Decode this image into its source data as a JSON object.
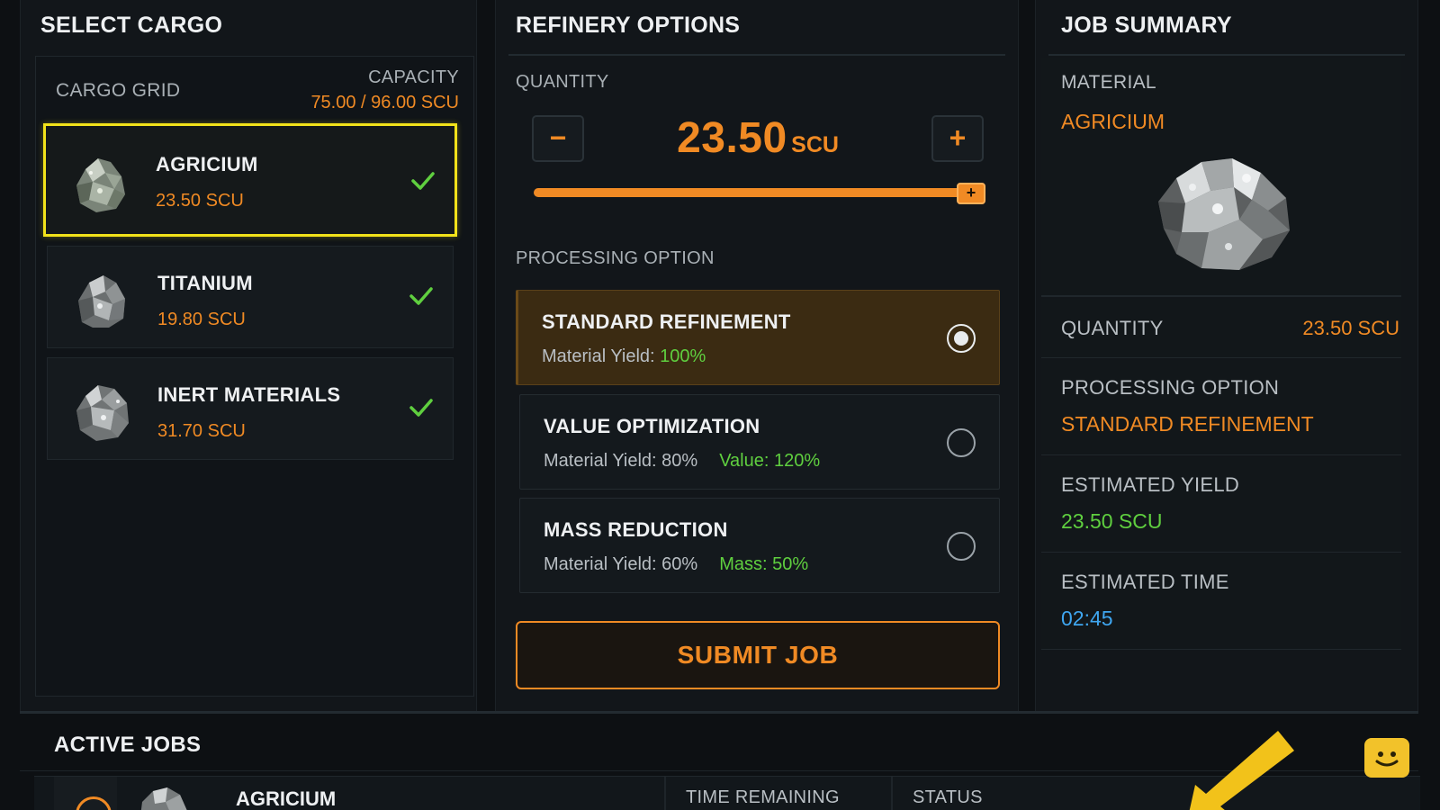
{
  "select_cargo": {
    "title": "SELECT CARGO",
    "grid_label": "CARGO GRID",
    "capacity_label": "CAPACITY",
    "capacity_value": "75.00 / 96.00 SCU",
    "items": [
      {
        "name": "AGRICIUM",
        "qty": "23.50 SCU",
        "selected": true,
        "checked": true
      },
      {
        "name": "TITANIUM",
        "qty": "19.80 SCU",
        "selected": false,
        "checked": true
      },
      {
        "name": "INERT MATERIALS",
        "qty": "31.70 SCU",
        "selected": false,
        "checked": true
      }
    ]
  },
  "refinery": {
    "title": "REFINERY OPTIONS",
    "quantity_label": "QUANTITY",
    "minus": "−",
    "plus": "+",
    "quantity_value": "23.50",
    "quantity_unit": "SCU",
    "slider_fraction": 1.0,
    "slider_handle": "+",
    "processing_label": "PROCESSING OPTION",
    "options": [
      {
        "name": "STANDARD REFINEMENT",
        "yield_label": "Material Yield: ",
        "yield_value": "100%",
        "extra": "",
        "selected": true
      },
      {
        "name": "VALUE OPTIMIZATION",
        "yield_label": "Material Yield: 80%",
        "yield_value": "",
        "extra": "Value: 120%",
        "selected": false
      },
      {
        "name": "MASS REDUCTION",
        "yield_label": "Material Yield: 60%",
        "yield_value": "",
        "extra": "Mass: 50%",
        "selected": false
      }
    ],
    "submit_label": "SUBMIT JOB"
  },
  "summary": {
    "title": "JOB SUMMARY",
    "material_label": "MATERIAL",
    "material_value": "AGRICIUM",
    "quantity_label": "QUANTITY",
    "quantity_value": "23.50 SCU",
    "processing_label": "PROCESSING OPTION",
    "processing_value": "STANDARD REFINEMENT",
    "yield_label": "ESTIMATED YIELD",
    "yield_value": "23.50 SCU",
    "time_label": "ESTIMATED TIME",
    "time_value": "02:45"
  },
  "active_jobs": {
    "title": "ACTIVE JOBS",
    "row_name": "AGRICIUM",
    "time_remaining_label": "TIME REMAINING",
    "status_label": "STATUS"
  },
  "colors": {
    "accent": "#f08a24",
    "selection_outline": "#f2e21a",
    "positive": "#5fcf3f",
    "info": "#3fa6f0"
  },
  "icons": [
    "ore-rock-icon",
    "check-icon",
    "radio-icon",
    "chat-help-icon",
    "pointer-arrow-icon"
  ]
}
